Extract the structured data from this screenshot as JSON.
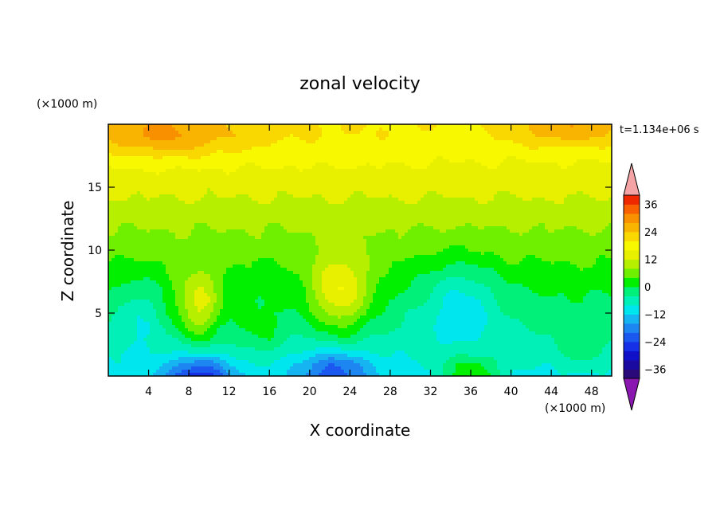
{
  "chart_data": {
    "type": "heatmap",
    "title": "zonal velocity",
    "xlabel": "X coordinate",
    "ylabel": "Z coordinate",
    "x_unit": "(×1000 m)",
    "y_unit": "(×1000 m)",
    "time_label": "t=1.134e+06 s",
    "xlim": [
      0,
      50
    ],
    "ylim": [
      0,
      20
    ],
    "x_ticks": [
      4,
      8,
      12,
      16,
      20,
      24,
      28,
      32,
      36,
      40,
      44,
      48
    ],
    "y_ticks": [
      5,
      10,
      15
    ],
    "colorbar": {
      "ticks": [
        36,
        24,
        12,
        0,
        -12,
        -24,
        -36
      ],
      "levels": [
        -40,
        -36,
        -32,
        -28,
        -24,
        -20,
        -16,
        -12,
        -8,
        -4,
        0,
        4,
        8,
        12,
        16,
        20,
        24,
        28,
        32,
        36,
        40
      ],
      "colors": [
        "#2a0a7a",
        "#1a0aa0",
        "#1010c8",
        "#1530e6",
        "#1a58f0",
        "#1e86f0",
        "#16b4f0",
        "#00e6ee",
        "#00f0b8",
        "#00f07a",
        "#00f000",
        "#6ef000",
        "#b6f000",
        "#e8f000",
        "#f8f800",
        "#f8d800",
        "#f8b400",
        "#f89000",
        "#f86000",
        "#f02800"
      ],
      "over_color": "#f4a4a4",
      "under_color": "#8a18b0"
    },
    "grid_nx": 51,
    "grid_ny": 21,
    "z_description": "zonal velocity u(x,z), approximate values in colorbar units",
    "values": []
  }
}
